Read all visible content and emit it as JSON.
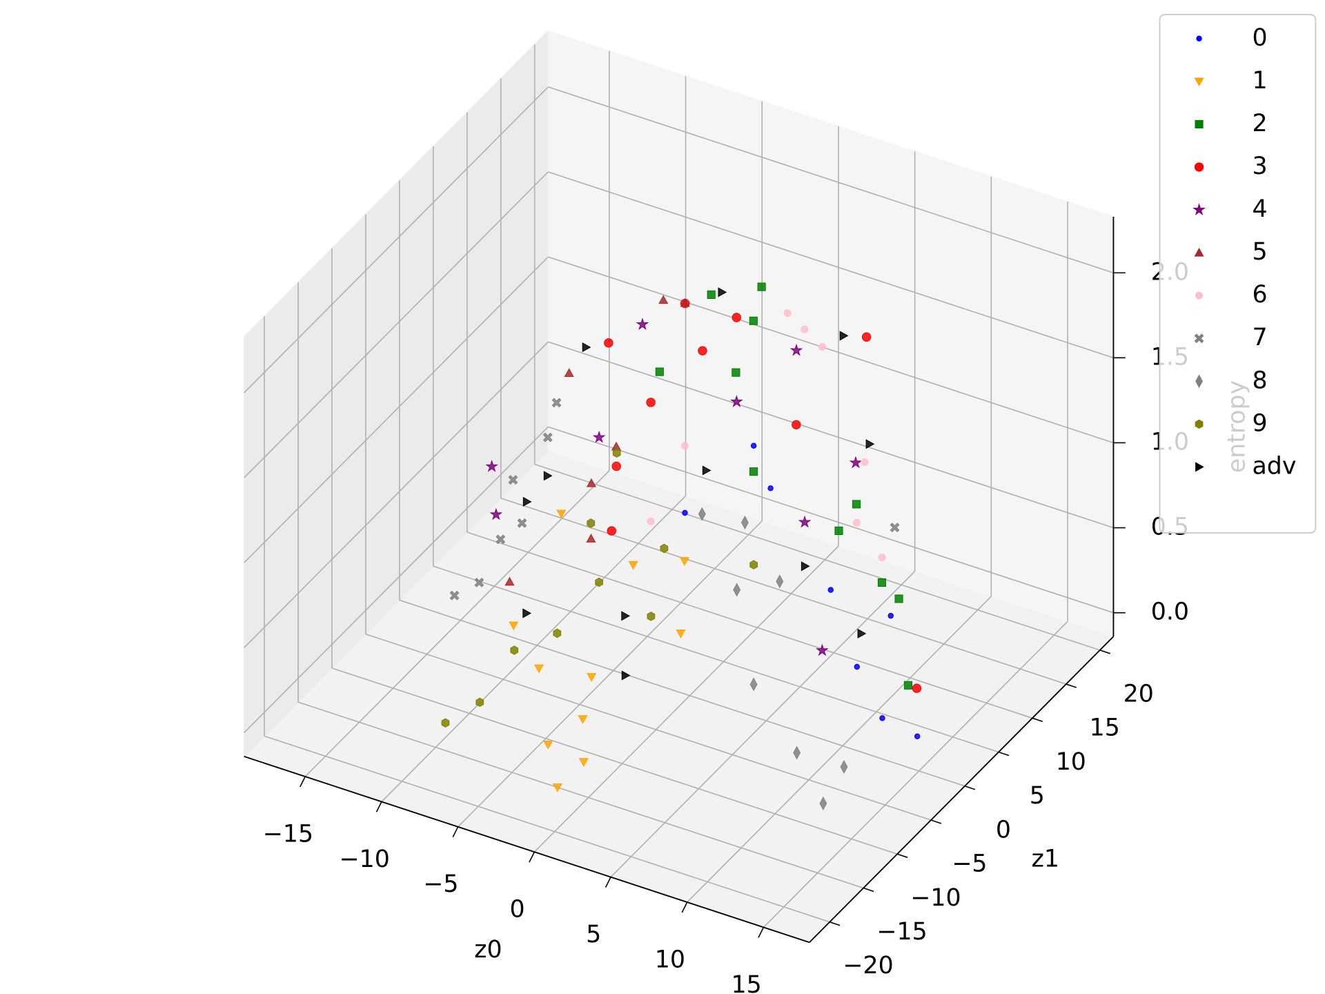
{
  "chart_data": {
    "type": "scatter",
    "projection": "3d",
    "xlabel": "z0",
    "ylabel": "z1",
    "zlabel": "entropy",
    "xlim": [
      -19,
      18
    ],
    "ylim": [
      -23,
      22
    ],
    "zlim": [
      -0.14,
      2.33
    ],
    "xticks": [
      {
        "value": -15,
        "label": "−15"
      },
      {
        "value": -10,
        "label": "−10"
      },
      {
        "value": -5,
        "label": "−5"
      },
      0,
      5,
      10,
      15
    ],
    "yticks": [
      {
        "value": -20,
        "label": "−20"
      },
      {
        "value": -15,
        "label": "−15"
      },
      {
        "value": -10,
        "label": "−10"
      },
      {
        "value": -5,
        "label": "−5"
      },
      0,
      5,
      10,
      15,
      20
    ],
    "zticks": [
      {
        "value": 0,
        "label": "0.0"
      },
      0.5,
      {
        "value": 1,
        "label": "1.0"
      },
      1.5,
      {
        "value": 2,
        "label": "2.0"
      }
    ],
    "grid": true,
    "legend": "upper right",
    "series": [
      {
        "name": "0",
        "color": "#0000ff",
        "marker": "o",
        "size": 3,
        "x": [
          14.8,
          12.6,
          10.5,
          7.1,
          10.5,
          2.9,
          0.3,
          2.9
        ],
        "y": [
          0.2,
          0,
          1,
          4.8,
          6,
          5.4,
          -1.4,
          2.9
        ],
        "z": [
          0.05,
          0.1,
          0.3,
          0.5,
          0.4,
          0.95,
          1.0,
          1.3
        ]
      },
      {
        "name": "1",
        "color": "#ffa500",
        "marker": "v",
        "size": 5,
        "x": [
          -0.7,
          -2.6,
          -1.3,
          -4.7,
          -2.1,
          -6.8,
          -2.2,
          -0.7,
          1.0,
          -0.4,
          -6.6
        ],
        "y": [
          -18.0,
          -15.1,
          -12.9,
          -11.7,
          -9.8,
          -10.7,
          -3.4,
          0.8,
          -3.6,
          -14.8,
          -4.1
        ],
        "z": [
          0.02,
          0.1,
          0.2,
          0.35,
          0.3,
          0.5,
          0.7,
          0.6,
          0.4,
          0.05,
          0.9
        ]
      },
      {
        "name": "2",
        "color": "#008000",
        "marker": "s",
        "size": 5,
        "x": [
          13.1,
          10.9,
          10.1,
          7.5,
          7.1,
          2.5,
          0.1,
          0.1,
          0.5,
          -1.6,
          -3.7
        ],
        "y": [
          2.7,
          6.3,
          5.6,
          7.7,
          6,
          3.8,
          6.6,
          9.2,
          9.5,
          6.8,
          3.9
        ],
        "z": [
          0.2,
          0.5,
          0.6,
          0.9,
          0.8,
          1.1,
          1.5,
          1.7,
          1.9,
          1.9,
          1.5
        ]
      },
      {
        "name": "3",
        "color": "#ff0000",
        "marker": "o",
        "size": 5,
        "x": [
          14.5,
          4.8,
          -0.8,
          -4.3,
          -1.8,
          4.8,
          -3.7,
          0.3,
          1.6,
          -4.1
        ],
        "y": [
          0.8,
          15.3,
          1.1,
          -2.3,
          -1.7,
          4.9,
          -2.5,
          1.2,
          3.3,
          -2.3
        ],
        "z": [
          0.3,
          1.5,
          2.1,
          1.9,
          1.6,
          1.4,
          1.2,
          1.85,
          2.0,
          0.8
        ]
      },
      {
        "name": "4",
        "color": "#800080",
        "marker": "*",
        "size": 6,
        "x": [
          -11.5,
          -10.6,
          4.5,
          8.4,
          5.0,
          7.1,
          -2.7,
          -4.3,
          2.4
        ],
        "y": [
          -3.3,
          -4.7,
          5.6,
          0.6,
          5.7,
          8.5,
          -0.9,
          -3.7,
          1.5
        ],
        "z": [
          1.0,
          0.8,
          1.8,
          0.35,
          0.8,
          1.1,
          2.0,
          1.4,
          1.6
        ]
      },
      {
        "name": "5",
        "color": "#a52a2a",
        "marker": "^",
        "size": 5,
        "x": [
          -0.4,
          -5.6,
          -4.1,
          -3.9,
          -8.3,
          -1.2,
          -3.0
        ],
        "y": [
          0.2,
          -5.2,
          -5.3,
          -5.8,
          -7.9,
          -1.2,
          -4.1
        ],
        "z": [
          2.15,
          1.8,
          1.2,
          0.9,
          0.6,
          2.2,
          1.4
        ]
      },
      {
        "name": "6",
        "color": "#ffc0cb",
        "marker": "o",
        "size": 4,
        "x": [
          8.0,
          9.7,
          3.1,
          2.2,
          -1.8,
          -0.5,
          7.5,
          1.4
        ],
        "y": [
          6.6,
          6.5,
          12.6,
          12,
          -1.7,
          0.4,
          8.9,
          11.3
        ],
        "z": [
          0.85,
          0.7,
          1.5,
          1.6,
          0.9,
          1.3,
          1.1,
          1.7
        ]
      },
      {
        "name": "7",
        "color": "#808080",
        "marker": "X",
        "size": 5,
        "x": [
          -11.6,
          -10.6,
          -10.0,
          -8.9,
          -8.5,
          -8.1,
          -9.8,
          9.7
        ],
        "y": [
          -8.6,
          -7.2,
          -5.4,
          -4.7,
          -1.8,
          -1.4,
          -4.0,
          8.4
        ],
        "z": [
          0.45,
          0.5,
          0.7,
          0.8,
          1.2,
          1.4,
          1.0,
          0.8
        ]
      },
      {
        "name": "8",
        "color": "#808080",
        "marker": "d",
        "size": 6,
        "x": [
          13.2,
          10.5,
          7.1,
          3.3,
          5.0,
          2.9,
          1.2,
          13.1
        ],
        "y": [
          -10.1,
          -7.9,
          -6.6,
          -0.5,
          2.0,
          1.6,
          -0.9,
          -6.8
        ],
        "z": [
          0.02,
          0.15,
          0.4,
          0.6,
          0.6,
          0.9,
          1.0,
          0.1
        ]
      },
      {
        "name": "9",
        "color": "#808000",
        "marker": "h",
        "size": 5,
        "x": [
          -8.3,
          -7.2,
          -6.8,
          -5.1,
          -4.7,
          -5.5,
          -1.9,
          -3.5,
          2.9,
          -1.3
        ],
        "y": [
          -17.4,
          -14.8,
          -10.6,
          -8.1,
          -2.8,
          -2.2,
          0.5,
          -2.9,
          2.9,
          -2.8
        ],
        "z": [
          0.15,
          0.2,
          0.35,
          0.4,
          0.5,
          0.8,
          0.65,
          1.3,
          0.6,
          0.4
        ]
      },
      {
        "name": "adv",
        "color": "#000000",
        "marker": ">",
        "size": 5,
        "x": [
          1.3,
          -5.2,
          3.6,
          7.7,
          -9.3,
          -7.6,
          -0.5,
          -2.6,
          5.5,
          9.5,
          0.1,
          -8.3
        ],
        "y": [
          1.8,
          -3.6,
          14.6,
          9.2,
          -3.1,
          -7.0,
          -8.4,
          -3.7,
          4.6,
          3.9,
          2.2,
          -2.3
        ],
        "z": [
          2.2,
          1.9,
          1.5,
          1.2,
          0.85,
          0.4,
          0.3,
          0.4,
          0.6,
          0.35,
          1.1,
          1.0
        ]
      }
    ]
  }
}
